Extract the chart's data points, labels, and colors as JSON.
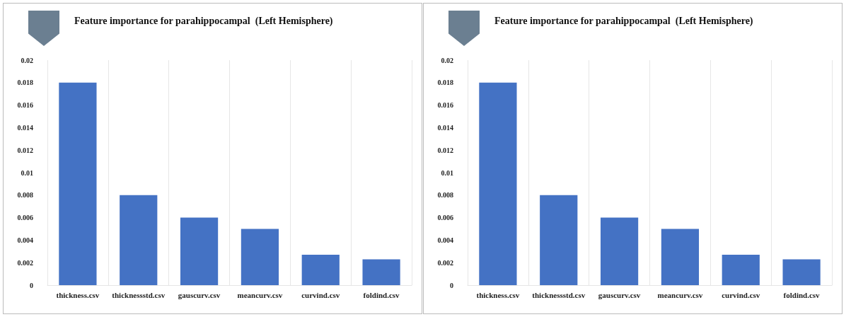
{
  "chart_data": [
    {
      "type": "bar",
      "title": "Feature importance for parahippocampal  (Left Hemisphere)",
      "categories": [
        "thickness.csv",
        "thicknessstd.csv",
        "gauscurv.csv",
        "meancurv.csv",
        "curvind.csv",
        "foldind.csv"
      ],
      "values": [
        0.018,
        0.008,
        0.006,
        0.005,
        0.0027,
        0.0023
      ],
      "color": "#4472c4",
      "ylim": [
        0,
        0.02
      ],
      "yticks": [
        0,
        0.002,
        0.004,
        0.006,
        0.008,
        0.01,
        0.012,
        0.014,
        0.016,
        0.018,
        0.02
      ],
      "grid": "x"
    },
    {
      "type": "bar",
      "title": "Feature importance for parahippocampal  (Left Hemisphere)",
      "categories": [
        "thickness.csv",
        "thicknessstd.csv",
        "gauscurv.csv",
        "meancurv.csv",
        "curvind.csv",
        "foldind.csv"
      ],
      "values": [
        0.018,
        0.008,
        0.006,
        0.005,
        0.0027,
        0.0023
      ],
      "color": "#4472c4",
      "ylim": [
        0,
        0.02
      ],
      "yticks": [
        0,
        0.002,
        0.004,
        0.006,
        0.008,
        0.01,
        0.012,
        0.014,
        0.016,
        0.018,
        0.02
      ],
      "grid": "x"
    }
  ]
}
